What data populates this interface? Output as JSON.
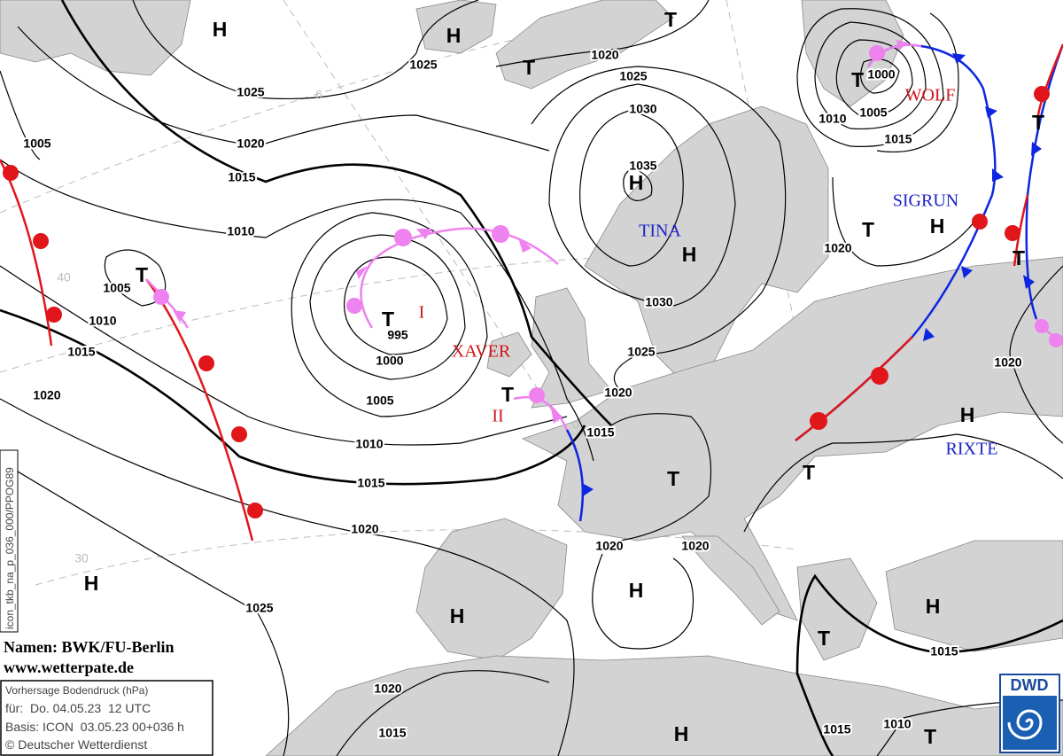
{
  "symbols": [
    "H",
    "H",
    "T",
    "T",
    "H",
    "H",
    "T",
    "T",
    "T",
    "T",
    "T",
    "H",
    "T",
    "T",
    "H",
    "T",
    "T",
    "H",
    "H",
    "T",
    "H",
    "H",
    "H",
    "T"
  ],
  "isobar_labels": [
    1025,
    1020,
    1015,
    1010,
    1005,
    1005,
    1010,
    1015,
    1020,
    1025,
    1020,
    1025,
    1030,
    1035,
    1030,
    1025,
    1020,
    1015,
    995,
    1000,
    1005,
    1010,
    1015,
    1020,
    1025,
    1020,
    1020,
    1020,
    1000,
    1005,
    1010,
    1015,
    1020,
    1015,
    1020,
    1015,
    1015,
    1010
  ],
  "system_names": [
    "XAVER",
    "I",
    "II",
    "TINA",
    "WOLF",
    "SIGRUN",
    "RIXTE"
  ],
  "grid_labels": [
    "6",
    "40",
    "30",
    "0"
  ],
  "credits": {
    "names": "Namen: BWK/FU-Berlin",
    "website": "www.wetterpate.de"
  },
  "side_text": "icon_tkb_na_p_036_000/PPOG89",
  "info_box": {
    "title": "Vorhersage Bodendruck (hPa)",
    "valid": "für:  Do. 04.05.23  12 UTC",
    "base": "Basis: ICON  03.05.23 00+036 h",
    "copyright": "© Deutscher Wetterdienst"
  },
  "logo": "DWD"
}
